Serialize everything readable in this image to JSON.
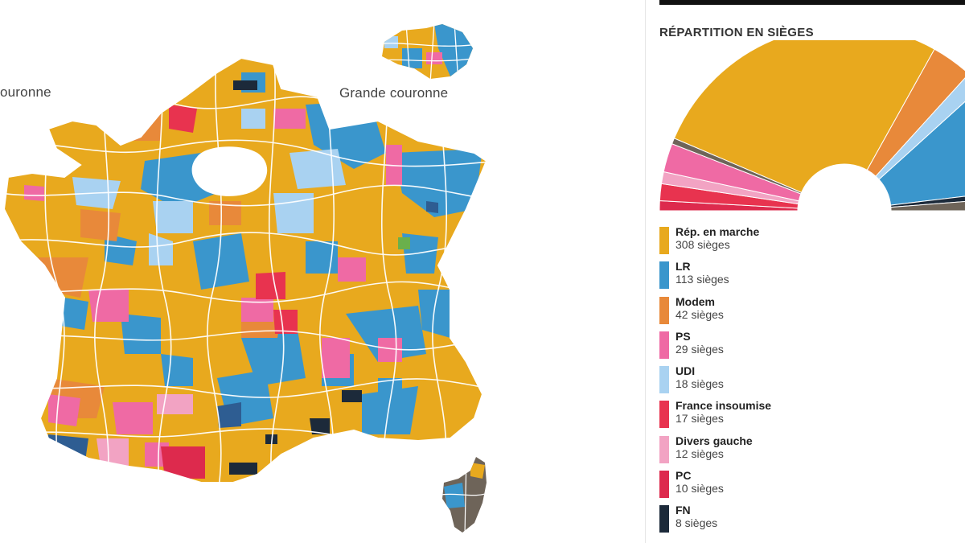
{
  "map": {
    "labels": {
      "petite_couronne": "ouronne",
      "grande_couronne": "Grande couronne"
    }
  },
  "seats_panel": {
    "title": "RÉPARTITION EN SIÈGES",
    "parties": [
      {
        "name": "Rép. en marche",
        "seats_label": "308 sièges",
        "seats": 308,
        "color": "#e8a91e"
      },
      {
        "name": "LR",
        "seats_label": "113 sièges",
        "seats": 113,
        "color": "#3a96cc"
      },
      {
        "name": "Modem",
        "seats_label": "42 sièges",
        "seats": 42,
        "color": "#e8893a"
      },
      {
        "name": "PS",
        "seats_label": "29 sièges",
        "seats": 29,
        "color": "#ef6aa4"
      },
      {
        "name": "UDI",
        "seats_label": "18 sièges",
        "seats": 18,
        "color": "#a9d2f1"
      },
      {
        "name": "France insoumise",
        "seats_label": "17 sièges",
        "seats": 17,
        "color": "#e8334f"
      },
      {
        "name": "Divers gauche",
        "seats_label": "12 sièges",
        "seats": 12,
        "color": "#f2a3c3"
      },
      {
        "name": "PC",
        "seats_label": "10 sièges",
        "seats": 10,
        "color": "#dd2a4d"
      },
      {
        "name": "FN",
        "seats_label": "8 sièges",
        "seats": 8,
        "color": "#1c2a3a"
      }
    ]
  }
}
